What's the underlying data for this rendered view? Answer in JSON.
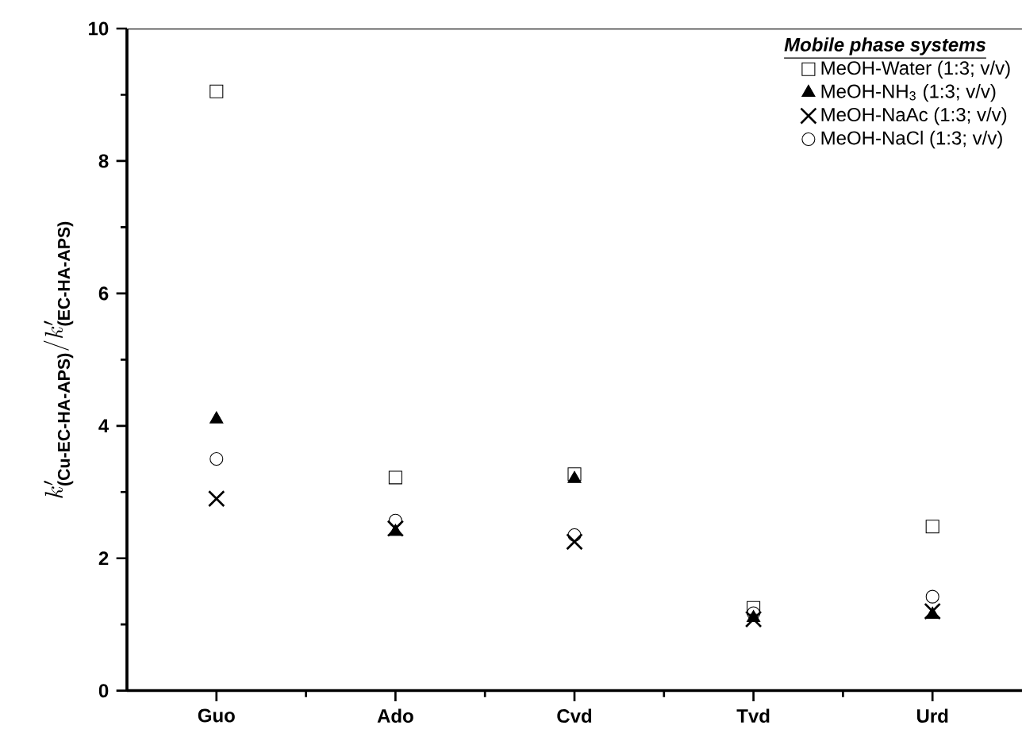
{
  "chart_data": {
    "type": "scatter",
    "ylabel": "k'_{\\text{(Cu-EC-HA-APS)}} / k'_{\\text{(EC-HA-APS)}}",
    "legend_title": "Mobile phase systems",
    "categories": [
      "Guo",
      "Ado",
      "Cvd",
      "Tvd",
      "Urd"
    ],
    "ylim": [
      0,
      10
    ],
    "yticks": [
      0,
      2,
      4,
      6,
      8,
      10
    ],
    "legend": "top right",
    "grid": false,
    "series": [
      {
        "name": "MeOH-Water (1:3; v/v)",
        "color": "#000000",
        "marker": "square",
        "values": [
          9.05,
          3.22,
          3.27,
          1.25,
          2.48
        ]
      },
      {
        "name": "MeOH-NH$_{3}$ (1:3; v/v)",
        "color": "#000000",
        "marker": "triangle",
        "values": [
          4.1,
          2.4,
          3.2,
          1.1,
          1.15
        ]
      },
      {
        "name": "MeOH-NaAc (1:3; v/v)",
        "color": "#000000",
        "marker": "cross",
        "values": [
          2.9,
          2.45,
          2.25,
          1.08,
          1.2
        ]
      },
      {
        "name": "MeOH-NaCl (1:3; v/v)",
        "color": "#000000",
        "marker": "circle",
        "values": [
          3.5,
          2.57,
          2.35,
          1.17,
          1.42
        ]
      }
    ]
  }
}
